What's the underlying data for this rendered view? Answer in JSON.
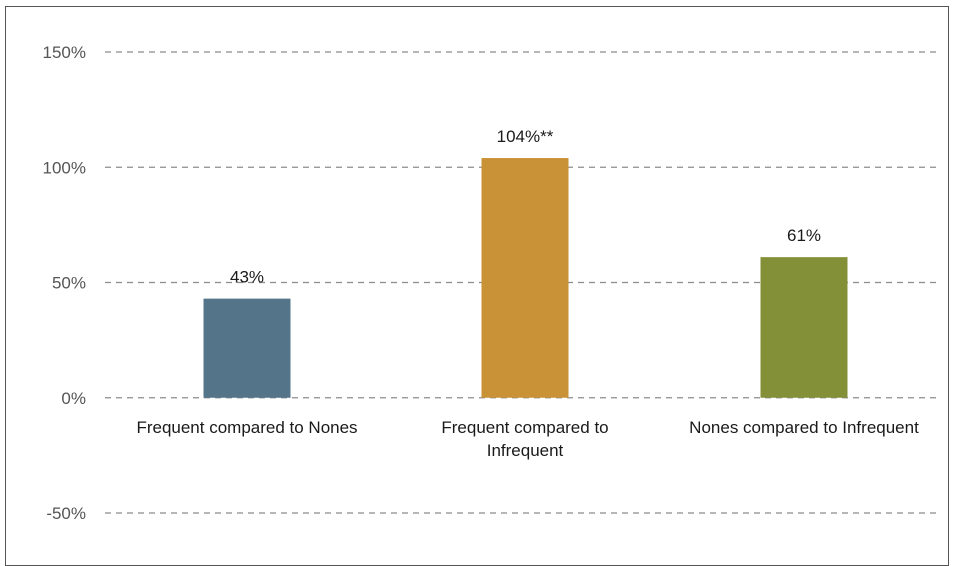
{
  "chart_data": {
    "type": "bar",
    "categories": [
      [
        "Frequent compared to Nones"
      ],
      [
        "Frequent compared to",
        "Infrequent"
      ],
      [
        "Nones compared to Infrequent"
      ]
    ],
    "values": [
      43,
      104,
      61
    ],
    "data_labels": [
      "43%",
      "104%**",
      "61%"
    ],
    "colors": [
      "#537489",
      "#c99236",
      "#849038"
    ],
    "ylim": [
      -50,
      150
    ],
    "yticks": [
      150,
      100,
      50,
      0,
      -50
    ],
    "ytick_labels": [
      "150%",
      "100%",
      "50%",
      "0%",
      "-50%"
    ],
    "grid": true,
    "legend": "none"
  }
}
